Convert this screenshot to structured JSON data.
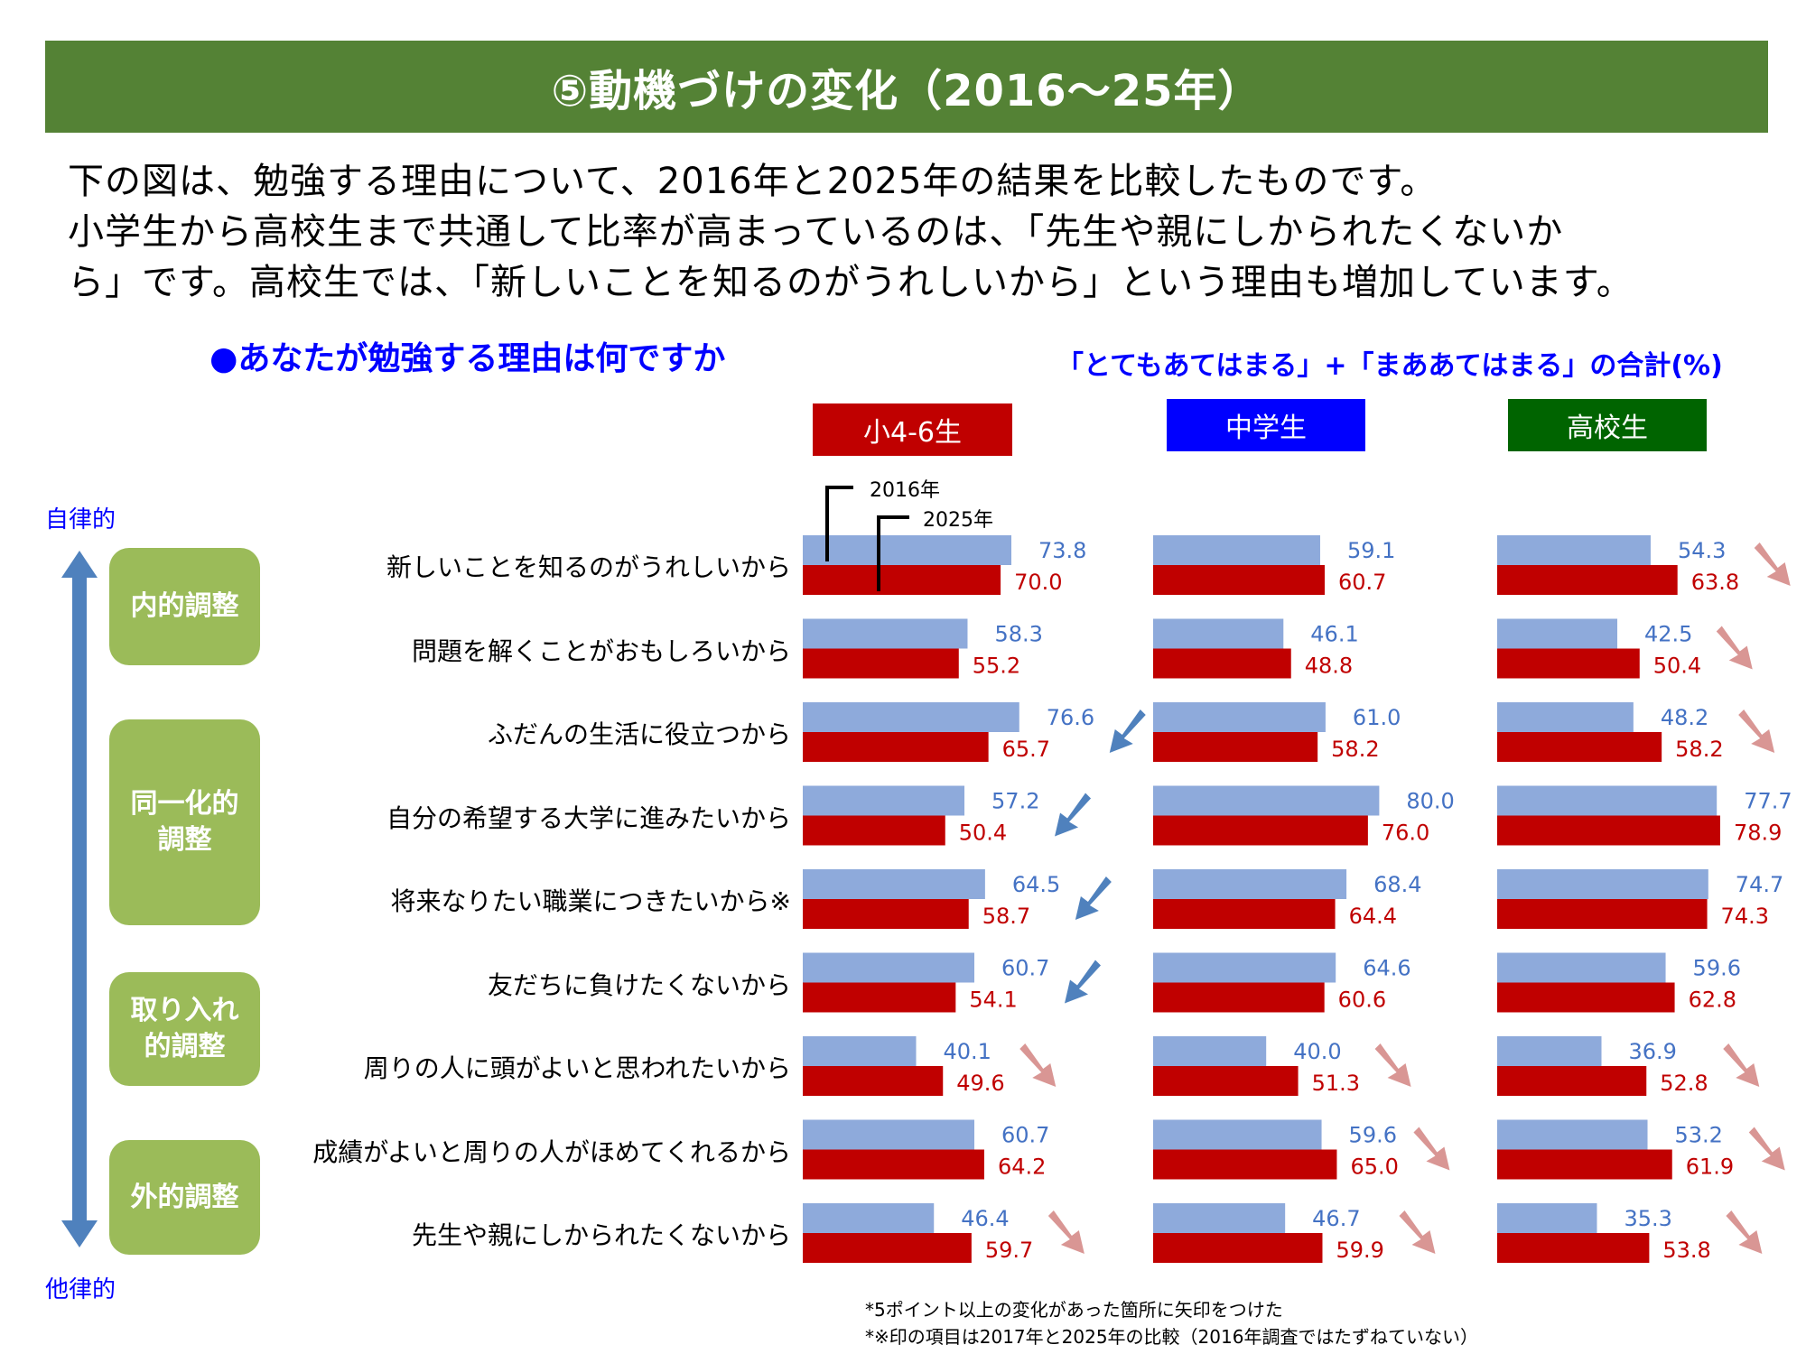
{
  "header": {
    "title": "⑤動機づけの変化（2016～25年）"
  },
  "description": [
    "下の図は、勉強する理由について、2016年と2025年の結果を比較したものです。",
    "小学生から高校生まで共通して比率が高まっているのは、「先生や親にしかられたくないか",
    "ら」です。高校生では、「新しいことを知るのがうれしいから」という理由も増加しています。"
  ],
  "question": "●あなたが勉強する理由は何ですか",
  "unit_note": "「とてもあてはまる」+「まああてはまる」の合計(%)",
  "axis": {
    "top_label": "自律的",
    "bottom_label": "他律的"
  },
  "categories": [
    {
      "label_lines": [
        "内的調整"
      ]
    },
    {
      "label_lines": [
        "同一化的",
        "調整"
      ]
    },
    {
      "label_lines": [
        "取り入れ",
        "的調整"
      ]
    },
    {
      "label_lines": [
        "外的調整"
      ]
    }
  ],
  "legend": {
    "year_2016": "2016年",
    "year_2025": "2025年"
  },
  "footnotes": [
    "*5ポイント以上の変化があった箇所に矢印をつけた",
    "*※印の項目は2017年と2025年の比較（2016年調査ではたずねていない）"
  ],
  "colors": {
    "bar_2016": "#8eaadb",
    "bar_2025": "#c00000",
    "label_2016": "#4472c4",
    "label_2025": "#c00000",
    "arrow_decrease": "#4f81bd",
    "arrow_increase": "#d99694",
    "title_bg": "#548235",
    "category_bg": "#9bbb59"
  },
  "chart_data": {
    "type": "bar",
    "orientation": "horizontal",
    "title": "あなたが勉強する理由は何ですか",
    "value_unit": "%",
    "xlim": [
      0,
      100
    ],
    "grid": false,
    "categories": [
      "新しいことを知るのがうれしいから",
      "問題を解くことがおもしろいから",
      "ふだんの生活に役立つから",
      "自分の希望する大学に進みたいから",
      "将来なりたい職業につきたいから※",
      "友だちに負けたくないから",
      "周りの人に頭がよいと思われたいから",
      "成績がよいと周りの人がほめてくれるから",
      "先生や親にしかられたくないから"
    ],
    "panels": [
      {
        "name": "小4-6生",
        "header_color": "#c00000",
        "series": [
          {
            "name": "2016年",
            "values": [
              73.8,
              58.3,
              76.6,
              57.2,
              64.5,
              60.7,
              40.1,
              60.7,
              46.4
            ]
          },
          {
            "name": "2025年",
            "values": [
              70.0,
              55.2,
              65.7,
              50.4,
              58.7,
              54.1,
              49.6,
              64.2,
              59.7
            ]
          }
        ],
        "arrows": [
          "none",
          "none",
          "down",
          "down",
          "down",
          "down",
          "up",
          "none",
          "up"
        ]
      },
      {
        "name": "中学生",
        "header_color": "#0000ff",
        "series": [
          {
            "name": "2016年",
            "values": [
              59.1,
              46.1,
              61.0,
              80.0,
              68.4,
              64.6,
              40.0,
              59.6,
              46.7
            ]
          },
          {
            "name": "2025年",
            "values": [
              60.7,
              48.8,
              58.2,
              76.0,
              64.4,
              60.6,
              51.3,
              65.0,
              59.9
            ]
          }
        ],
        "arrows": [
          "none",
          "none",
          "none",
          "none",
          "none",
          "none",
          "up",
          "up",
          "up"
        ]
      },
      {
        "name": "高校生",
        "header_color": "#006400",
        "series": [
          {
            "name": "2016年",
            "values": [
              54.3,
              42.5,
              48.2,
              77.7,
              74.7,
              59.6,
              36.9,
              53.2,
              35.3
            ]
          },
          {
            "name": "2025年",
            "values": [
              63.8,
              50.4,
              58.2,
              78.9,
              74.3,
              62.8,
              52.8,
              61.9,
              53.8
            ]
          }
        ],
        "arrows": [
          "up",
          "up",
          "up",
          "none",
          "none",
          "none",
          "up",
          "up",
          "up"
        ]
      }
    ]
  }
}
